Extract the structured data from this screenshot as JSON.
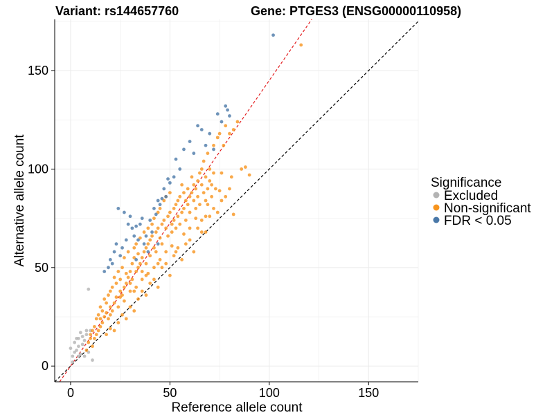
{
  "chart_data": {
    "type": "scatter",
    "title_left": "Variant: rs144657760",
    "title_right": "Gene: PTGES3 (ENSG00000110958)",
    "xlabel": "Reference allele count",
    "ylabel": "Alternative allele count",
    "xlim": [
      -8,
      175
    ],
    "ylim": [
      -8,
      176
    ],
    "xticks": [
      0,
      50,
      100,
      150
    ],
    "yticks": [
      0,
      50,
      100,
      150
    ],
    "grid": true,
    "legend": {
      "title": "Significance",
      "position": "right",
      "entries": [
        {
          "label": "Excluded",
          "color": "#b3b3b3"
        },
        {
          "label": "Non-significant",
          "color": "#f7941d"
        },
        {
          "label": "FDR < 0.05",
          "color": "#4a78a8"
        }
      ]
    },
    "reference_lines": [
      {
        "name": "identity",
        "slope": 1.0,
        "intercept": 0,
        "color": "#000000",
        "style": "dashed"
      },
      {
        "name": "fit",
        "slope": 1.45,
        "intercept": 0,
        "color": "#e31a1c",
        "style": "dashed"
      }
    ],
    "series": [
      {
        "name": "Excluded",
        "color": "#b3b3b3",
        "points": [
          [
            0,
            9
          ],
          [
            1,
            5
          ],
          [
            2,
            7
          ],
          [
            2,
            12
          ],
          [
            3,
            8
          ],
          [
            4,
            10
          ],
          [
            4,
            14
          ],
          [
            5,
            6
          ],
          [
            6,
            11
          ],
          [
            6,
            15
          ],
          [
            7,
            5
          ],
          [
            7,
            13
          ],
          [
            8,
            16
          ],
          [
            8,
            18
          ],
          [
            9,
            39
          ],
          [
            10,
            18
          ],
          [
            11,
            3
          ],
          [
            4,
            5
          ],
          [
            3,
            14
          ],
          [
            1,
            2
          ],
          [
            5,
            17
          ],
          [
            9,
            7
          ]
        ]
      },
      {
        "name": "Non-significant",
        "color": "#f7941d",
        "points": [
          [
            8,
            8
          ],
          [
            9,
            12
          ],
          [
            10,
            14
          ],
          [
            11,
            10
          ],
          [
            11,
            18
          ],
          [
            12,
            14
          ],
          [
            12,
            20
          ],
          [
            13,
            16
          ],
          [
            13,
            24
          ],
          [
            14,
            18
          ],
          [
            14,
            26
          ],
          [
            15,
            20
          ],
          [
            15,
            30
          ],
          [
            16,
            22
          ],
          [
            16,
            28
          ],
          [
            17,
            25
          ],
          [
            17,
            34
          ],
          [
            18,
            27
          ],
          [
            18,
            32
          ],
          [
            19,
            24
          ],
          [
            19,
            36
          ],
          [
            20,
            30
          ],
          [
            20,
            38
          ],
          [
            21,
            28
          ],
          [
            21,
            40
          ],
          [
            22,
            32
          ],
          [
            22,
            45
          ],
          [
            23,
            35
          ],
          [
            23,
            42
          ],
          [
            24,
            30
          ],
          [
            24,
            48
          ],
          [
            25,
            38
          ],
          [
            25,
            44
          ],
          [
            26,
            36
          ],
          [
            26,
            50
          ],
          [
            27,
            40
          ],
          [
            27,
            55
          ],
          [
            28,
            42
          ],
          [
            28,
            47
          ],
          [
            29,
            45
          ],
          [
            29,
            58
          ],
          [
            30,
            48
          ],
          [
            30,
            38
          ],
          [
            31,
            52
          ],
          [
            31,
            44
          ],
          [
            32,
            55
          ],
          [
            32,
            60
          ],
          [
            33,
            48
          ],
          [
            33,
            62
          ],
          [
            34,
            50
          ],
          [
            34,
            57
          ],
          [
            35,
            52
          ],
          [
            35,
            65
          ],
          [
            36,
            55
          ],
          [
            36,
            48
          ],
          [
            37,
            58
          ],
          [
            37,
            68
          ],
          [
            38,
            60
          ],
          [
            38,
            52
          ],
          [
            39,
            62
          ],
          [
            39,
            70
          ],
          [
            40,
            64
          ],
          [
            40,
            56
          ],
          [
            41,
            66
          ],
          [
            41,
            72
          ],
          [
            42,
            60
          ],
          [
            42,
            75
          ],
          [
            43,
            68
          ],
          [
            43,
            58
          ],
          [
            44,
            70
          ],
          [
            44,
            78
          ],
          [
            45,
            65
          ],
          [
            45,
            80
          ],
          [
            46,
            72
          ],
          [
            46,
            62
          ],
          [
            47,
            74
          ],
          [
            47,
            84
          ],
          [
            48,
            70
          ],
          [
            48,
            86
          ],
          [
            49,
            76
          ],
          [
            49,
            66
          ],
          [
            50,
            78
          ],
          [
            50,
            88
          ],
          [
            51,
            72
          ],
          [
            51,
            68
          ],
          [
            52,
            80
          ],
          [
            52,
            74
          ],
          [
            53,
            82
          ],
          [
            53,
            70
          ],
          [
            54,
            84
          ],
          [
            54,
            76
          ],
          [
            55,
            86
          ],
          [
            55,
            72
          ],
          [
            56,
            78
          ],
          [
            56,
            92
          ],
          [
            57,
            80
          ],
          [
            57,
            88
          ],
          [
            58,
            84
          ],
          [
            58,
            74
          ],
          [
            59,
            82
          ],
          [
            59,
            90
          ],
          [
            60,
            86
          ],
          [
            60,
            78
          ],
          [
            61,
            88
          ],
          [
            61,
            96
          ],
          [
            62,
            84
          ],
          [
            62,
            92
          ],
          [
            63,
            90
          ],
          [
            63,
            80
          ],
          [
            64,
            94
          ],
          [
            64,
            86
          ],
          [
            65,
            98
          ],
          [
            65,
            82
          ],
          [
            66,
            92
          ],
          [
            66,
            100
          ],
          [
            67,
            88
          ],
          [
            67,
            104
          ],
          [
            68,
            96
          ],
          [
            68,
            84
          ],
          [
            69,
            90
          ],
          [
            69,
            108
          ],
          [
            70,
            94
          ],
          [
            70,
            100
          ],
          [
            71,
            92
          ],
          [
            71,
            86
          ],
          [
            72,
            98
          ],
          [
            72,
            112
          ],
          [
            73,
            90
          ],
          [
            74,
            116
          ],
          [
            75,
            118
          ],
          [
            76,
            98
          ],
          [
            77,
            112
          ],
          [
            78,
            122
          ],
          [
            80,
            118
          ],
          [
            82,
            120
          ],
          [
            84,
            124
          ],
          [
            86,
            100
          ],
          [
            88,
            101
          ],
          [
            90,
            97
          ],
          [
            116,
            163
          ],
          [
            18,
            16
          ],
          [
            20,
            19
          ],
          [
            22,
            18
          ],
          [
            24,
            22
          ],
          [
            26,
            26
          ],
          [
            28,
            24
          ],
          [
            30,
            30
          ],
          [
            32,
            28
          ],
          [
            34,
            34
          ],
          [
            36,
            38
          ],
          [
            38,
            36
          ],
          [
            40,
            42
          ],
          [
            42,
            44
          ],
          [
            44,
            40
          ],
          [
            46,
            50
          ],
          [
            48,
            52
          ],
          [
            50,
            46
          ],
          [
            52,
            56
          ],
          [
            54,
            60
          ],
          [
            56,
            54
          ],
          [
            58,
            62
          ],
          [
            60,
            64
          ],
          [
            62,
            58
          ],
          [
            64,
            70
          ],
          [
            66,
            74
          ],
          [
            68,
            68
          ],
          [
            70,
            76
          ],
          [
            72,
            80
          ],
          [
            74,
            78
          ],
          [
            76,
            84
          ],
          [
            78,
            86
          ],
          [
            80,
            90
          ],
          [
            82,
            77
          ],
          [
            68,
            76
          ],
          [
            66,
            68
          ],
          [
            53,
            58
          ],
          [
            42,
            50
          ],
          [
            36,
            44
          ],
          [
            30,
            42
          ],
          [
            25,
            35
          ],
          [
            20,
            26
          ],
          [
            15,
            24
          ],
          [
            10,
            16
          ],
          [
            33,
            40
          ],
          [
            27,
            33
          ],
          [
            39,
            47
          ],
          [
            45,
            54
          ],
          [
            51,
            61
          ],
          [
            57,
            67
          ],
          [
            63,
            75
          ],
          [
            69,
            82
          ],
          [
            75,
            89
          ],
          [
            81,
            96
          ],
          [
            60,
            70
          ],
          [
            48,
            58
          ],
          [
            44,
            52
          ],
          [
            38,
            46
          ],
          [
            32,
            38
          ]
        ]
      },
      {
        "name": "FDR < 0.05",
        "color": "#4a78a8",
        "points": [
          [
            24,
            80
          ],
          [
            27,
            78
          ],
          [
            29,
            72
          ],
          [
            30,
            76
          ],
          [
            31,
            70
          ],
          [
            32,
            66
          ],
          [
            33,
            71
          ],
          [
            34,
            64
          ],
          [
            35,
            72
          ],
          [
            36,
            75
          ],
          [
            37,
            62
          ],
          [
            38,
            66
          ],
          [
            40,
            74
          ],
          [
            41,
            68
          ],
          [
            42,
            80
          ],
          [
            43,
            77
          ],
          [
            44,
            84
          ],
          [
            45,
            82
          ],
          [
            46,
            85
          ],
          [
            47,
            90
          ],
          [
            48,
            86
          ],
          [
            49,
            95
          ],
          [
            50,
            93
          ],
          [
            52,
            96
          ],
          [
            53,
            105
          ],
          [
            55,
            100
          ],
          [
            57,
            110
          ],
          [
            60,
            114
          ],
          [
            62,
            108
          ],
          [
            64,
            122
          ],
          [
            66,
            120
          ],
          [
            68,
            112
          ],
          [
            70,
            118
          ],
          [
            72,
            110
          ],
          [
            74,
            128
          ],
          [
            76,
            124
          ],
          [
            78,
            132
          ],
          [
            79,
            130
          ],
          [
            80,
            127
          ],
          [
            102,
            168
          ],
          [
            22,
            58
          ],
          [
            26,
            60
          ],
          [
            28,
            64
          ],
          [
            25,
            56
          ],
          [
            20,
            54
          ],
          [
            19,
            50
          ],
          [
            17,
            48
          ],
          [
            23,
            62
          ],
          [
            21,
            52
          ],
          [
            33,
            54
          ],
          [
            39,
            58
          ],
          [
            44,
            62
          ]
        ]
      }
    ]
  }
}
